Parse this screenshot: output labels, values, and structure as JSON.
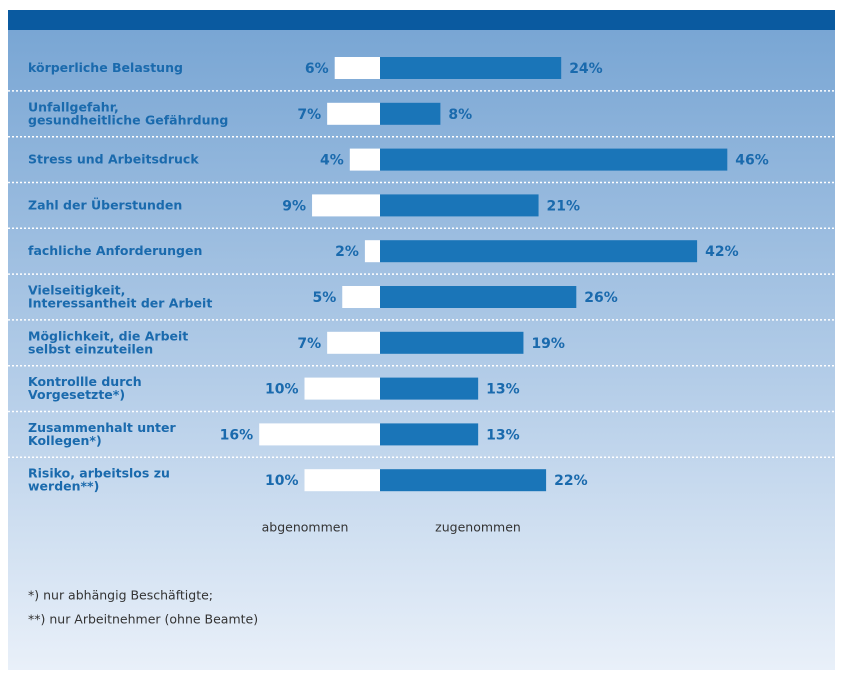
{
  "chart_data": {
    "type": "bar",
    "categories": [
      "körperliche Belastung",
      "Unfallgefahr,\ngesundheitliche Gefährdung",
      "Stress und Arbeitsdruck",
      "Zahl der Überstunden",
      "fachliche Anforderungen",
      "Vielseitigkeit,\nInteressantheit der Arbeit",
      "Möglichkeit, die Arbeit\nselbst einzuteilen",
      "Kontrollle durch\nVorgesetzte*)",
      "Zusammenhalt unter\nKollegen*)",
      "Risiko, arbeitslos zu\nwerden**)"
    ],
    "series": [
      {
        "name": "abgenommen",
        "color": "#ffffff",
        "values": [
          6,
          7,
          4,
          9,
          2,
          5,
          7,
          10,
          16,
          10
        ],
        "value_labels": [
          "6%",
          "7%",
          "4%",
          "9%",
          "2%",
          "5%",
          "7%",
          "10%",
          "16%",
          "10%"
        ]
      },
      {
        "name": "zugenommen",
        "color": "#1a75b8",
        "values": [
          24,
          8,
          46,
          21,
          42,
          26,
          19,
          13,
          13,
          22
        ],
        "value_labels": [
          "24%",
          "8%",
          "46%",
          "21%",
          "42%",
          "26%",
          "19%",
          "13%",
          "13%",
          "22%"
        ]
      }
    ],
    "footnotes": [
      "*) nur abhängig Beschäftigte;",
      "**) nur Arbeitnehmer (ohne Beamte)"
    ]
  }
}
